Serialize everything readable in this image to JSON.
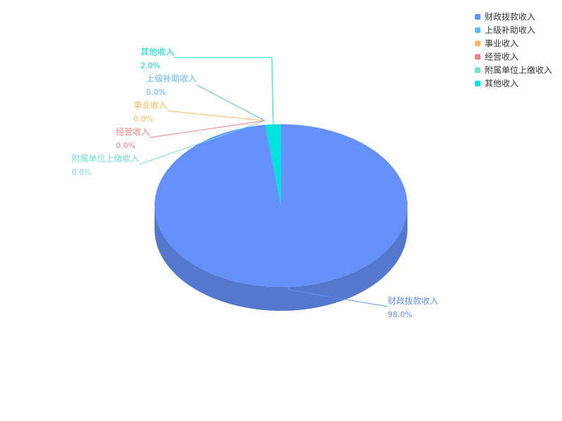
{
  "chart_data": {
    "type": "pie",
    "style": "3d",
    "legend_placement": "top-right",
    "slices": [
      {
        "name": "财政拨款收入",
        "value": 98.0,
        "label": "98.0%",
        "color": "#6690f9"
      },
      {
        "name": "上级补助收入",
        "value": 0.0,
        "label": "0.0%",
        "color": "#5cb8f8"
      },
      {
        "name": "事业收入",
        "value": 0.0,
        "label": "0.0%",
        "color": "#ffb861"
      },
      {
        "name": "经营收入",
        "value": 0.0,
        "label": "0.0%",
        "color": "#f58181"
      },
      {
        "name": "附属单位上缴收入",
        "value": 0.0,
        "label": "0.0%",
        "color": "#6ee0d6"
      },
      {
        "name": "其他收入",
        "value": 2.0,
        "label": "2.0%",
        "color": "#00e0dc"
      }
    ]
  }
}
